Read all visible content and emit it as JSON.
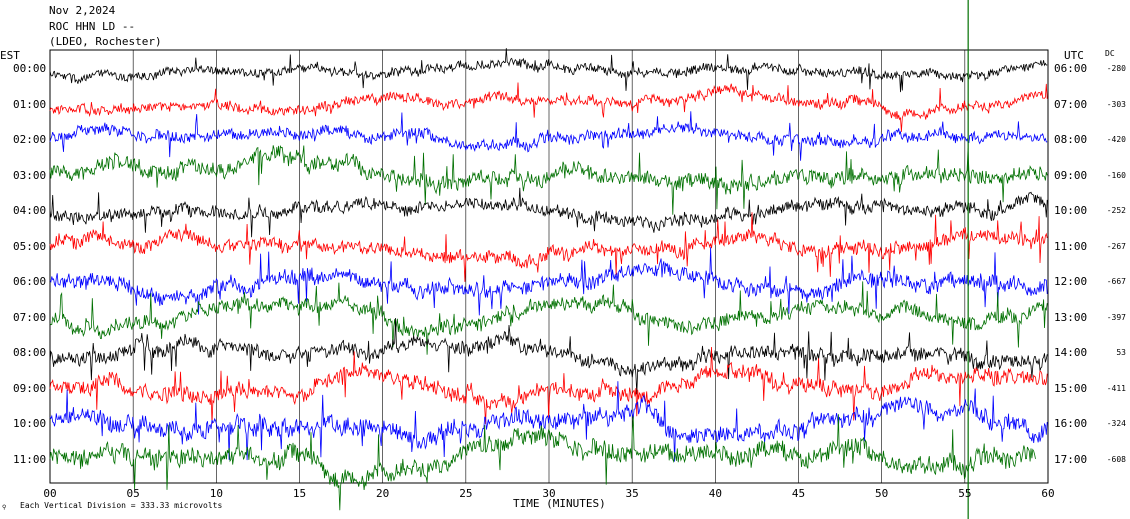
{
  "header": {
    "date": "Nov 2,2024",
    "station": "ROC HHN LD --",
    "location": "(LDEO, Rochester)"
  },
  "chart_data": {
    "type": "line",
    "left_axis_label": "EST",
    "right_axis_label": "UTC",
    "dc_label": "DC",
    "xlabel": "TIME (MINUTES)",
    "x_ticks": [
      "00",
      "05",
      "10",
      "15",
      "20",
      "25",
      "30",
      "35",
      "40",
      "45",
      "50",
      "55",
      "60"
    ],
    "xlim": [
      0,
      60
    ],
    "grid_vertical": true,
    "colors": [
      "#000000",
      "#ff0000",
      "#0000ff",
      "#007000"
    ],
    "marker_minute": 55.2,
    "rows": [
      {
        "est": "00:00",
        "utc": "06:00",
        "dc": "-280",
        "amplitude": 0.9
      },
      {
        "est": "01:00",
        "utc": "07:00",
        "dc": "-303",
        "amplitude": 1.0
      },
      {
        "est": "02:00",
        "utc": "08:00",
        "dc": "-420",
        "amplitude": 1.1
      },
      {
        "est": "03:00",
        "utc": "09:00",
        "dc": "-160",
        "amplitude": 1.5
      },
      {
        "est": "04:00",
        "utc": "10:00",
        "dc": "-252",
        "amplitude": 1.2
      },
      {
        "est": "05:00",
        "utc": "11:00",
        "dc": "-267",
        "amplitude": 1.3
      },
      {
        "est": "06:00",
        "utc": "12:00",
        "dc": "-667",
        "amplitude": 1.5
      },
      {
        "est": "07:00",
        "utc": "13:00",
        "dc": "-397",
        "amplitude": 1.4
      },
      {
        "est": "08:00",
        "utc": "14:00",
        "dc": "53",
        "amplitude": 1.4
      },
      {
        "est": "09:00",
        "utc": "15:00",
        "dc": "-411",
        "amplitude": 1.5
      },
      {
        "est": "10:00",
        "utc": "16:00",
        "dc": "-324",
        "amplitude": 1.7
      },
      {
        "est": "11:00",
        "utc": "17:00",
        "dc": "-608",
        "amplitude": 1.8
      }
    ],
    "last_row_end_minute": 59.3
  },
  "footer": {
    "scale_note": "Each Vertical Division =  333.33 microvolts"
  }
}
